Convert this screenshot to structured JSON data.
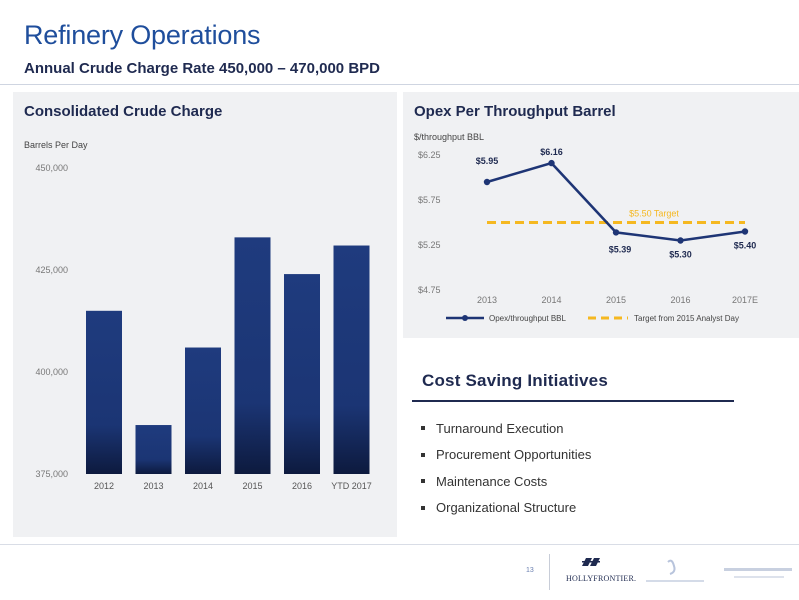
{
  "header": {
    "title": "Refinery Operations",
    "subtitle": "Annual Crude Charge Rate 450,000 – 470,000 BPD"
  },
  "left_panel": {
    "title": "Consolidated Crude Charge",
    "unit": "Barrels Per Day"
  },
  "right_panel": {
    "title": "Opex Per Throughput Barrel",
    "unit": "$/throughput BBL"
  },
  "chart_data": [
    {
      "type": "bar",
      "title": "Consolidated Crude Charge",
      "ylabel": "Barrels Per Day",
      "categories": [
        "2012",
        "2013",
        "2014",
        "2015",
        "2016",
        "YTD 2017"
      ],
      "values": [
        415000,
        387000,
        406000,
        433000,
        424000,
        431000
      ],
      "ylim": [
        375000,
        450000
      ],
      "yticks": [
        "375,000",
        "400,000",
        "425,000",
        "450,000"
      ],
      "ytick_values": [
        375000,
        400000,
        425000,
        450000
      ],
      "grid": false,
      "bar_color": "#1e3a7b"
    },
    {
      "type": "line",
      "title": "Opex Per Throughput Barrel",
      "ylabel": "$/throughput BBL",
      "categories": [
        "2013",
        "2014",
        "2015",
        "2016",
        "2017E"
      ],
      "series": [
        {
          "name": "Opex/throughput BBL",
          "values": [
            5.95,
            6.16,
            5.39,
            5.3,
            5.4
          ],
          "labels": [
            "$5.95",
            "$6.16",
            "$5.39",
            "$5.30",
            "$5.40"
          ],
          "color": "#1e3575"
        },
        {
          "name": "Target from 2015 Analyst Day",
          "values": [
            5.5,
            5.5,
            5.5,
            5.5,
            5.5
          ],
          "color": "#f5b820",
          "dashed": true
        }
      ],
      "target_label": "$5.50 Target",
      "ylim": [
        4.75,
        6.25
      ],
      "yticks": [
        "$4.75",
        "$5.25",
        "$5.75",
        "$6.25"
      ],
      "ytick_values": [
        4.75,
        5.25,
        5.75,
        6.25
      ],
      "legend_position": "bottom",
      "grid": false
    }
  ],
  "cost_saving": {
    "title": "Cost Saving Initiatives",
    "items": [
      "Turnaround Execution",
      "Procurement Opportunities",
      "Maintenance Costs",
      "Organizational Structure"
    ]
  },
  "footer": {
    "page_number": "13",
    "logo_text": "HOLLYFRONTIER."
  }
}
